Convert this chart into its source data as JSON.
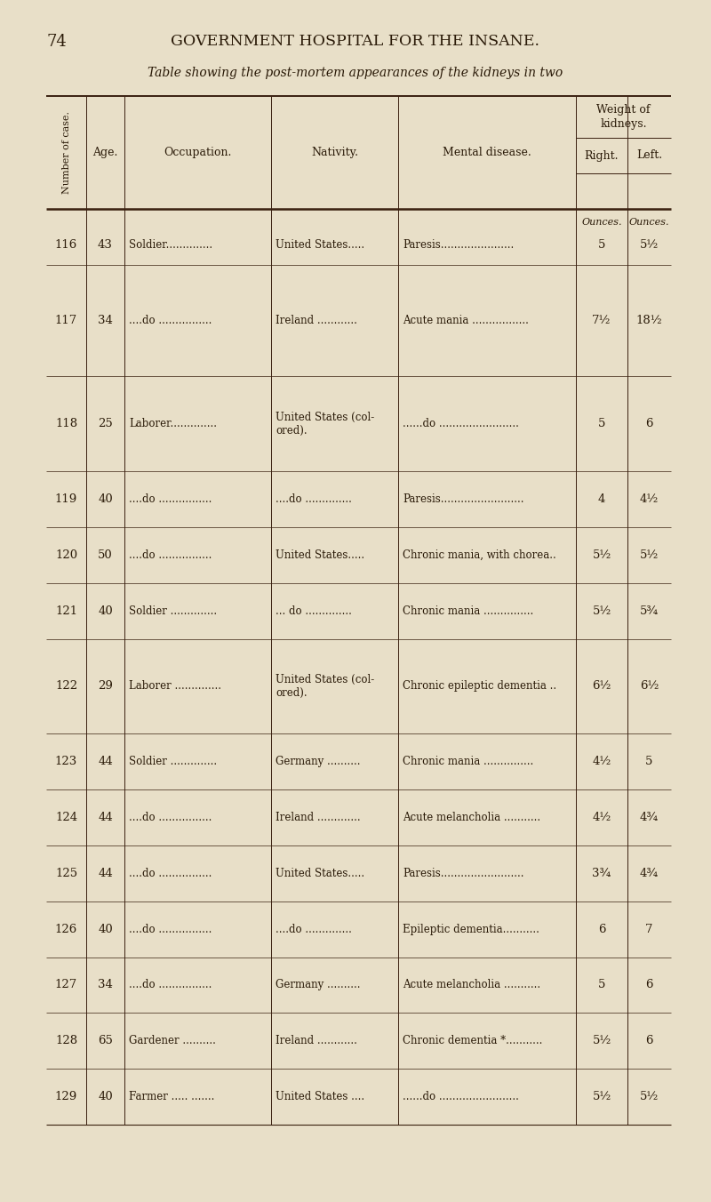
{
  "page_number": "74",
  "header_title": "GOVERNMENT HOSPITAL FOR THE INSANE.",
  "subtitle": "Table showing the post-mortem appearances of the kidneys in two",
  "bg_color": "#e8dfc8",
  "text_color": "#2a1a08",
  "rows": [
    {
      "num": "116",
      "age": "43",
      "occ": "Soldier..............",
      "nat": "United States.....",
      "dis": "Paresis......................",
      "right": "5",
      "left": "5½"
    },
    {
      "num": "117",
      "age": "34",
      "occ": "....do ................",
      "nat": "Ireland ............",
      "dis": "Acute mania .................",
      "right": "7½",
      "left": "18½"
    },
    {
      "num": "118",
      "age": "25",
      "occ": "Laborer..............",
      "nat": "United States (col-\nored).",
      "dis": "......do ........................",
      "right": "5",
      "left": "6"
    },
    {
      "num": "119",
      "age": "40",
      "occ": "....do ................",
      "nat": "....do ..............",
      "dis": "Paresis.........................",
      "right": "4",
      "left": "4½"
    },
    {
      "num": "120",
      "age": "50",
      "occ": "....do ................",
      "nat": "United States.....",
      "dis": "Chronic mania, with chorea..",
      "right": "5½",
      "left": "5½"
    },
    {
      "num": "121",
      "age": "40",
      "occ": "Soldier ..............",
      "nat": "... do ..............",
      "dis": "Chronic mania ...............",
      "right": "5½",
      "left": "5¾"
    },
    {
      "num": "122",
      "age": "29",
      "occ": "Laborer ..............",
      "nat": "United States (col-\nored).",
      "dis": "Chronic epileptic dementia ..",
      "right": "6½",
      "left": "6½"
    },
    {
      "num": "123",
      "age": "44",
      "occ": "Soldier ..............",
      "nat": "Germany ..........",
      "dis": "Chronic mania ...............",
      "right": "4½",
      "left": "5"
    },
    {
      "num": "124",
      "age": "44",
      "occ": "....do ................",
      "nat": "Ireland .............",
      "dis": "Acute melancholia ...........",
      "right": "4½",
      "left": "4¾"
    },
    {
      "num": "125",
      "age": "44",
      "occ": "....do ................",
      "nat": "United States.....",
      "dis": "Paresis.........................",
      "right": "3¾",
      "left": "4¾"
    },
    {
      "num": "126",
      "age": "40",
      "occ": "....do ................",
      "nat": "....do ..............",
      "dis": "Epileptic dementia...........",
      "right": "6",
      "left": "7"
    },
    {
      "num": "127",
      "age": "34",
      "occ": "....do ................",
      "nat": "Germany ..........",
      "dis": "Acute melancholia ...........",
      "right": "5",
      "left": "6"
    },
    {
      "num": "128",
      "age": "65",
      "occ": "Gardener ..........",
      "nat": "Ireland ............",
      "dis": "Chronic dementia *...........",
      "right": "5½",
      "left": "6"
    },
    {
      "num": "129",
      "age": "40",
      "occ": "Farmer ..... .......",
      "nat": "United States ....",
      "dis": "......do ........................",
      "right": "5½",
      "left": "5½"
    }
  ]
}
